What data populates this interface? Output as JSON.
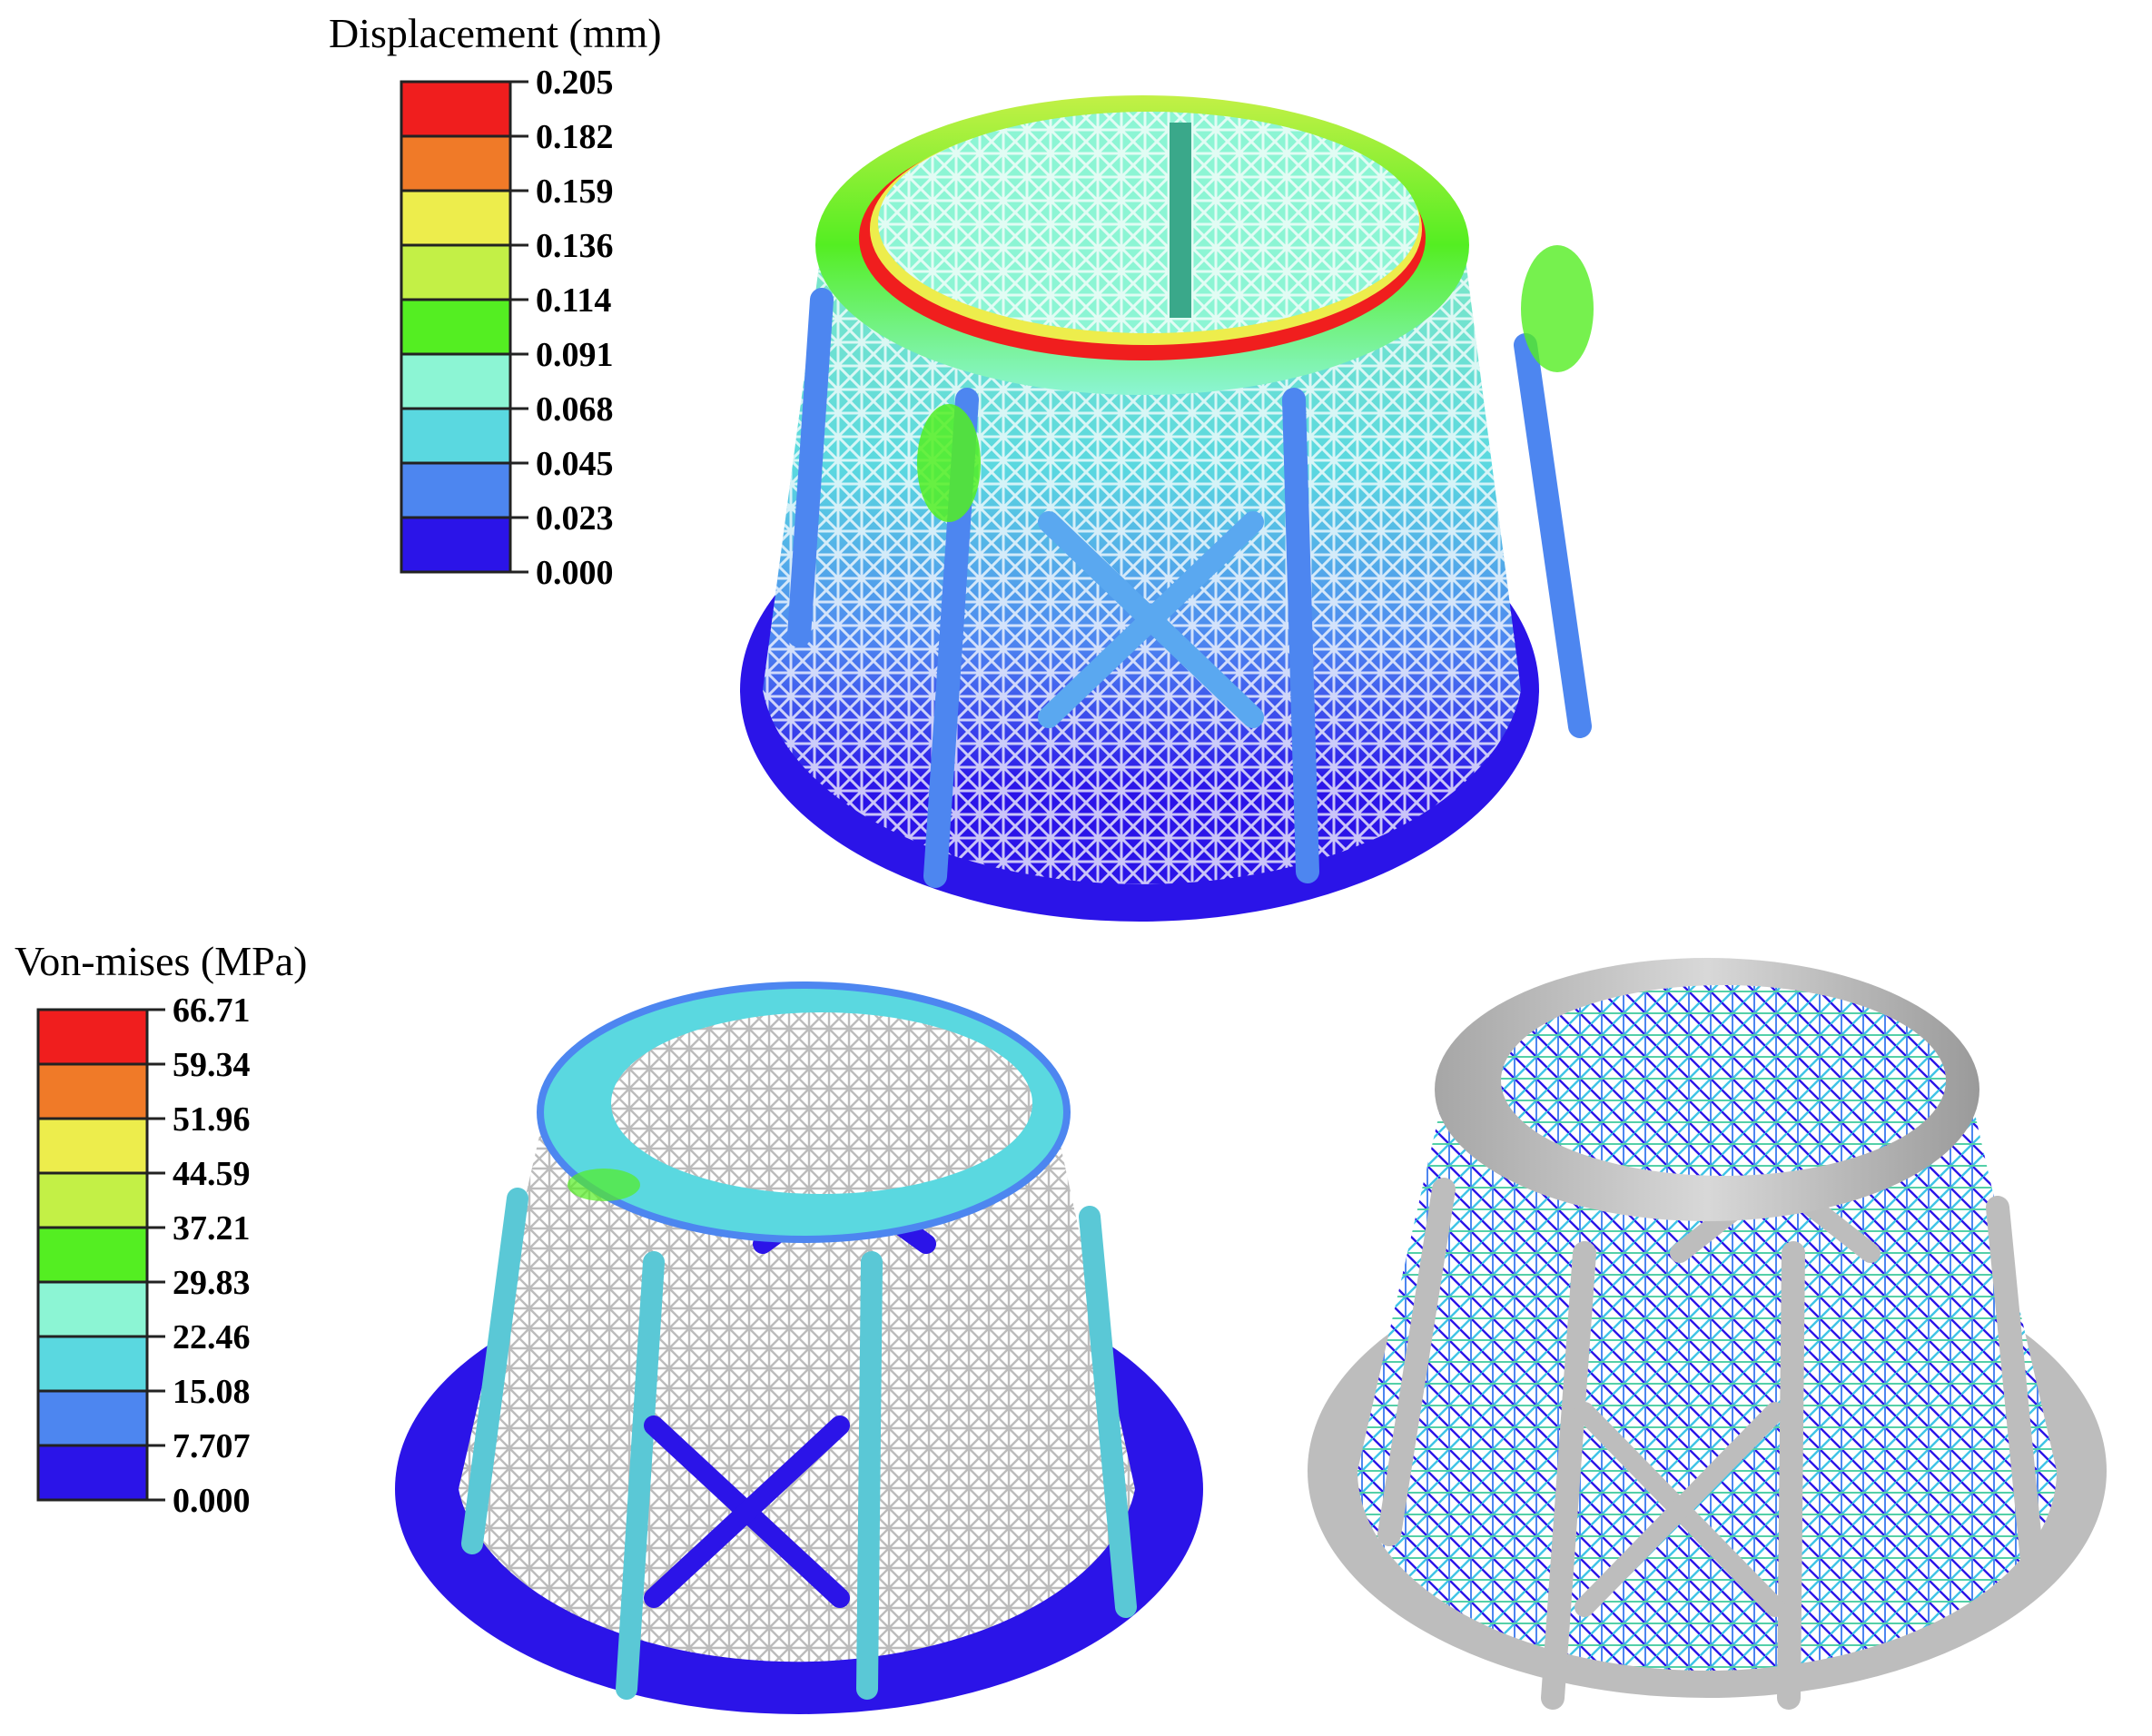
{
  "displacement_legend": {
    "title": "Displacement (mm)",
    "ticks": [
      "0.205",
      "0.182",
      "0.159",
      "0.136",
      "0.114",
      "0.091",
      "0.068",
      "0.045",
      "0.023",
      "0.000"
    ],
    "band_colors": [
      "#f01e1e",
      "#f07a28",
      "#eded4c",
      "#c3f046",
      "#54ee22",
      "#8cf5d4",
      "#5ad8e0",
      "#4d86f0",
      "#2b14e8"
    ]
  },
  "vonmises_legend": {
    "title": "Von-mises (MPa)",
    "ticks": [
      "66.71",
      "59.34",
      "51.96",
      "44.59",
      "37.21",
      "29.83",
      "22.46",
      "15.08",
      "7.707",
      "0.000"
    ],
    "band_colors": [
      "#f01e1e",
      "#f07a28",
      "#eded4c",
      "#c3f046",
      "#54ee22",
      "#8cf5d4",
      "#5ad8e0",
      "#4d86f0",
      "#2b14e8"
    ]
  },
  "colors": {
    "lattice_gray": "#c9c9c9",
    "solid_gray": "#bdbdbd",
    "base_blue": "#2b14e8"
  }
}
